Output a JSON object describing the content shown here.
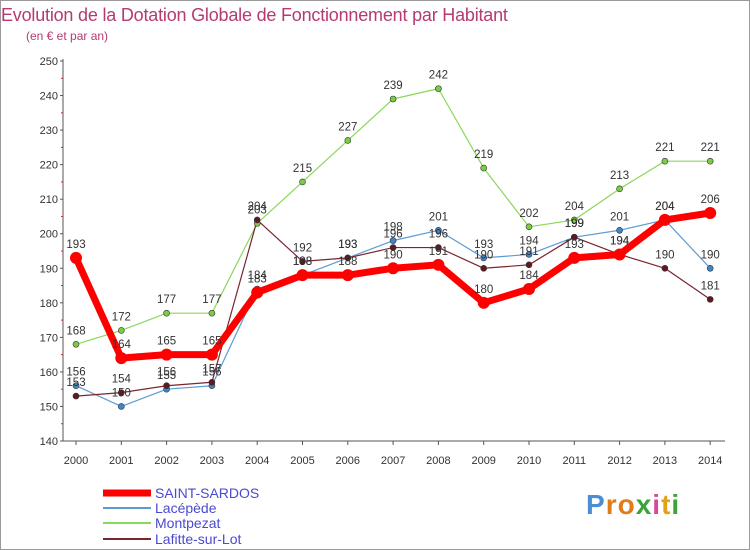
{
  "title": "Evolution de la Dotation Globale de Fonctionnement par Habitant",
  "subtitle": "(en € et par an)",
  "logo": {
    "text": "Proxiti",
    "letters": [
      "P",
      "r",
      "o",
      "x",
      "i",
      "t",
      "i"
    ],
    "colors": [
      "#4a8fd6",
      "#e07c1a",
      "#e07c1a",
      "#3aa33a",
      "#d64a9c",
      "#e0a21a",
      "#3aa33a"
    ]
  },
  "chart_data": {
    "type": "line",
    "title": "Evolution de la Dotation Globale de Fonctionnement par Habitant",
    "subtitle": "(en € et par an)",
    "xlabel": "",
    "ylabel": "",
    "ylim": [
      140,
      250
    ],
    "yticks": [
      140,
      150,
      160,
      170,
      180,
      190,
      200,
      210,
      220,
      230,
      240,
      250
    ],
    "grid": false,
    "legend_position": "bottom-left",
    "x": [
      "2000",
      "2001",
      "2002",
      "2003",
      "2004",
      "2005",
      "2006",
      "2007",
      "2008",
      "2009",
      "2010",
      "2011",
      "2012",
      "2013",
      "2014"
    ],
    "series": [
      {
        "name": "Montpezat",
        "color": "#88d85a",
        "marker": "#7acc44",
        "width": 1.2,
        "values": [
          168,
          172,
          177,
          177,
          203,
          215,
          227,
          239,
          242,
          219,
          202,
          204,
          213,
          221,
          221
        ]
      },
      {
        "name": "Lacépède",
        "color": "#5c9bd2",
        "marker": "#3f86c8",
        "width": 1.2,
        "values": [
          156,
          150,
          155,
          156,
          184,
          188,
          193,
          198,
          201,
          193,
          194,
          199,
          201,
          204,
          190
        ]
      },
      {
        "name": "Lafitte-sur-Lot",
        "color": "#7a2530",
        "marker": "#5e1a22",
        "width": 1.2,
        "values": [
          153,
          154,
          156,
          157,
          204,
          192,
          193,
          196,
          196,
          190,
          191,
          199,
          194,
          190,
          181
        ]
      },
      {
        "name": "SAINT-SARDOS",
        "color": "#ff0000",
        "marker": "#ff0000",
        "width": 7,
        "values": [
          193,
          164,
          165,
          165,
          183,
          188,
          188,
          190,
          191,
          180,
          184,
          193,
          194,
          204,
          206
        ]
      }
    ],
    "legend_order": [
      "SAINT-SARDOS",
      "Lacépède",
      "Montpezat",
      "Lafitte-sur-Lot"
    ]
  }
}
